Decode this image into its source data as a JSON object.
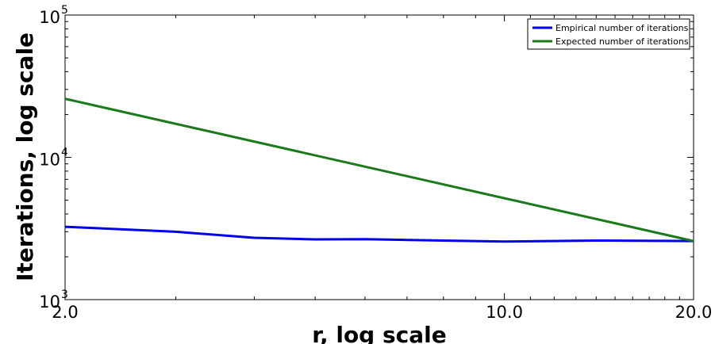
{
  "chart_data": {
    "type": "line",
    "xlabel": "r, log scale",
    "ylabel": "Iterations, log scale",
    "xscale": "log",
    "yscale": "log",
    "xlim": [
      2.0,
      20.0
    ],
    "ylim": [
      1000,
      100000
    ],
    "xticks": [
      {
        "value": 2.0,
        "label": "2.0"
      },
      {
        "value": 10.0,
        "label": "10.0"
      },
      {
        "value": 20.0,
        "label": "20.0"
      }
    ],
    "yticks": [
      {
        "value": 1000,
        "base": "10",
        "exp": "3"
      },
      {
        "value": 10000,
        "base": "10",
        "exp": "4"
      },
      {
        "value": 100000,
        "base": "10",
        "exp": "5"
      }
    ],
    "grid": false,
    "legend_position": "top-right",
    "series": [
      {
        "name": "Empirical number of iterations",
        "color": "#0000ee",
        "points": [
          {
            "x": 2.0,
            "y": 3250
          },
          {
            "x": 3.0,
            "y": 3000
          },
          {
            "x": 4.0,
            "y": 2720
          },
          {
            "x": 5.0,
            "y": 2650
          },
          {
            "x": 6.0,
            "y": 2660
          },
          {
            "x": 8.0,
            "y": 2600
          },
          {
            "x": 10.0,
            "y": 2560
          },
          {
            "x": 14.0,
            "y": 2600
          },
          {
            "x": 20.0,
            "y": 2580
          }
        ]
      },
      {
        "name": "Expected number of iterations",
        "color": "#1a7a1a",
        "points": [
          {
            "x": 2.0,
            "y": 25800
          },
          {
            "x": 20.0,
            "y": 2580
          }
        ]
      }
    ]
  }
}
